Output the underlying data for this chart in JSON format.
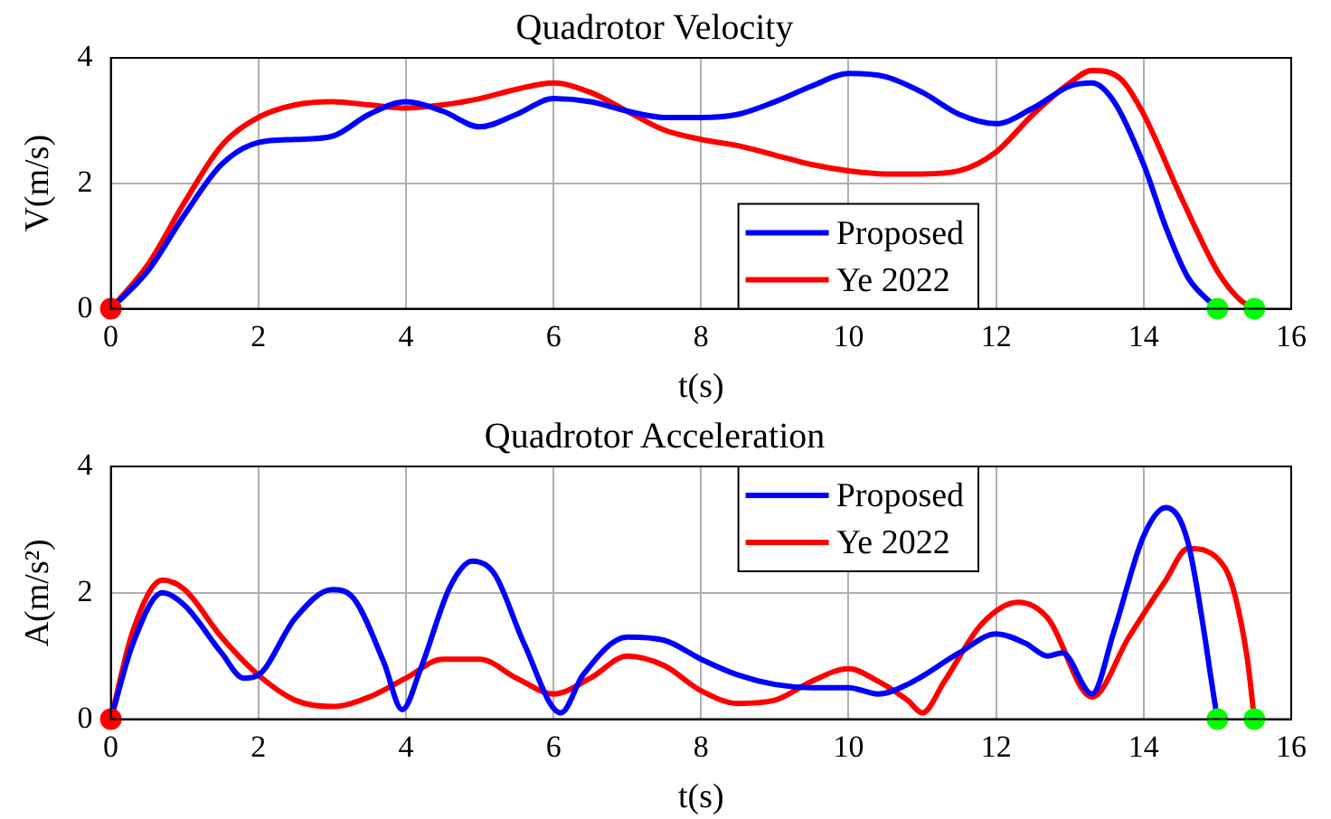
{
  "chart_data": [
    {
      "type": "line",
      "title": "Quadrotor Velocity",
      "xlabel": "t(s)",
      "ylabel": "V(m/s)",
      "xlim": [
        0,
        16
      ],
      "xticks": [
        0,
        2,
        4,
        6,
        8,
        10,
        12,
        14,
        16
      ],
      "ylim": [
        0,
        4
      ],
      "yticks": [
        0,
        2,
        4
      ],
      "grid": true,
      "legend": "bottom right",
      "series": [
        {
          "name": "Proposed",
          "color": "#0000ff",
          "x": [
            0,
            0.5,
            1,
            1.5,
            2,
            2.5,
            3,
            3.5,
            4,
            4.5,
            5,
            5.5,
            6,
            6.5,
            7,
            7.5,
            8,
            8.5,
            9,
            9.5,
            10,
            10.5,
            11,
            11.5,
            12,
            12.5,
            13,
            13.3,
            13.6,
            14,
            14.3,
            14.6,
            15
          ],
          "values": [
            0,
            0.6,
            1.5,
            2.3,
            2.65,
            2.7,
            2.75,
            3.1,
            3.3,
            3.15,
            2.9,
            3.1,
            3.35,
            3.3,
            3.15,
            3.05,
            3.05,
            3.1,
            3.3,
            3.55,
            3.75,
            3.7,
            3.45,
            3.1,
            2.95,
            3.2,
            3.55,
            3.6,
            3.3,
            2.3,
            1.3,
            0.5,
            0
          ]
        },
        {
          "name": "Ye 2022",
          "color": "#ff0000",
          "x": [
            0,
            0.5,
            1,
            1.5,
            2,
            2.5,
            3,
            3.5,
            4,
            4.5,
            5,
            5.5,
            6,
            6.5,
            7,
            7.5,
            8,
            8.5,
            9,
            9.5,
            10,
            10.5,
            11,
            11.5,
            12,
            12.5,
            13,
            13.3,
            13.7,
            14,
            14.5,
            15,
            15.3,
            15.5
          ],
          "values": [
            0,
            0.7,
            1.7,
            2.6,
            3.05,
            3.25,
            3.3,
            3.25,
            3.2,
            3.25,
            3.35,
            3.5,
            3.6,
            3.45,
            3.15,
            2.85,
            2.7,
            2.6,
            2.45,
            2.3,
            2.2,
            2.15,
            2.15,
            2.2,
            2.5,
            3.1,
            3.6,
            3.8,
            3.65,
            3.1,
            1.8,
            0.6,
            0.15,
            0
          ]
        },
        {
          "type": "scatter",
          "marker": "circle",
          "color": "#ff0000",
          "x": [
            0
          ],
          "values": [
            0
          ]
        },
        {
          "type": "scatter",
          "marker": "circle",
          "color": "#00ff00",
          "x": [
            15,
            15.5
          ],
          "values": [
            0,
            0
          ]
        }
      ]
    },
    {
      "type": "line",
      "title": "Quadrotor Acceleration",
      "xlabel": "t(s)",
      "ylabel": "A(m/s²)",
      "xlim": [
        0,
        16
      ],
      "xticks": [
        0,
        2,
        4,
        6,
        8,
        10,
        12,
        14,
        16
      ],
      "ylim": [
        0,
        4
      ],
      "yticks": [
        0,
        2,
        4
      ],
      "grid": true,
      "legend": "top right",
      "series": [
        {
          "name": "Proposed",
          "color": "#0000ff",
          "x": [
            0,
            0.3,
            0.7,
            1,
            1.5,
            1.8,
            2,
            2.5,
            3,
            3.3,
            3.7,
            3.95,
            4.2,
            4.6,
            4.9,
            5.2,
            5.6,
            6.1,
            6.4,
            7,
            7.5,
            8,
            8.5,
            9,
            9.5,
            10,
            10.4,
            10.8,
            11.5,
            12,
            12.4,
            12.7,
            12.9,
            13.3,
            13.6,
            14,
            14.3,
            14.6,
            15
          ],
          "values": [
            0,
            1.2,
            2.0,
            1.8,
            1.05,
            0.65,
            0.7,
            1.6,
            2.05,
            1.9,
            0.9,
            0.15,
            0.8,
            2.1,
            2.5,
            2.3,
            1.2,
            0.1,
            0.7,
            1.3,
            1.25,
            0.95,
            0.7,
            0.55,
            0.5,
            0.5,
            0.4,
            0.55,
            1.05,
            1.35,
            1.2,
            1.0,
            1.05,
            0.4,
            1.4,
            2.9,
            3.35,
            2.8,
            0
          ]
        },
        {
          "name": "Ye 2022",
          "color": "#ff0000",
          "x": [
            0,
            0.3,
            0.7,
            1,
            1.5,
            2,
            2.5,
            3,
            3.5,
            4,
            4.5,
            5,
            5.5,
            6,
            6.5,
            7,
            7.5,
            8,
            8.5,
            9,
            9.5,
            10,
            10.4,
            10.8,
            11,
            11.3,
            11.8,
            12.3,
            12.7,
            13.3,
            13.8,
            14.3,
            14.6,
            15.1,
            15.4,
            15.5
          ],
          "values": [
            0,
            1.4,
            2.2,
            2.05,
            1.3,
            0.7,
            0.3,
            0.2,
            0.35,
            0.65,
            0.95,
            0.95,
            0.65,
            0.4,
            0.65,
            1.0,
            0.85,
            0.45,
            0.25,
            0.3,
            0.6,
            0.8,
            0.6,
            0.3,
            0.1,
            0.6,
            1.5,
            1.85,
            1.6,
            0.35,
            1.3,
            2.2,
            2.7,
            2.4,
            1.0,
            0
          ]
        },
        {
          "type": "scatter",
          "marker": "circle",
          "color": "#ff0000",
          "x": [
            0
          ],
          "values": [
            0
          ]
        },
        {
          "type": "scatter",
          "marker": "circle",
          "color": "#00ff00",
          "x": [
            15,
            15.5
          ],
          "values": [
            0,
            0
          ]
        }
      ]
    }
  ]
}
